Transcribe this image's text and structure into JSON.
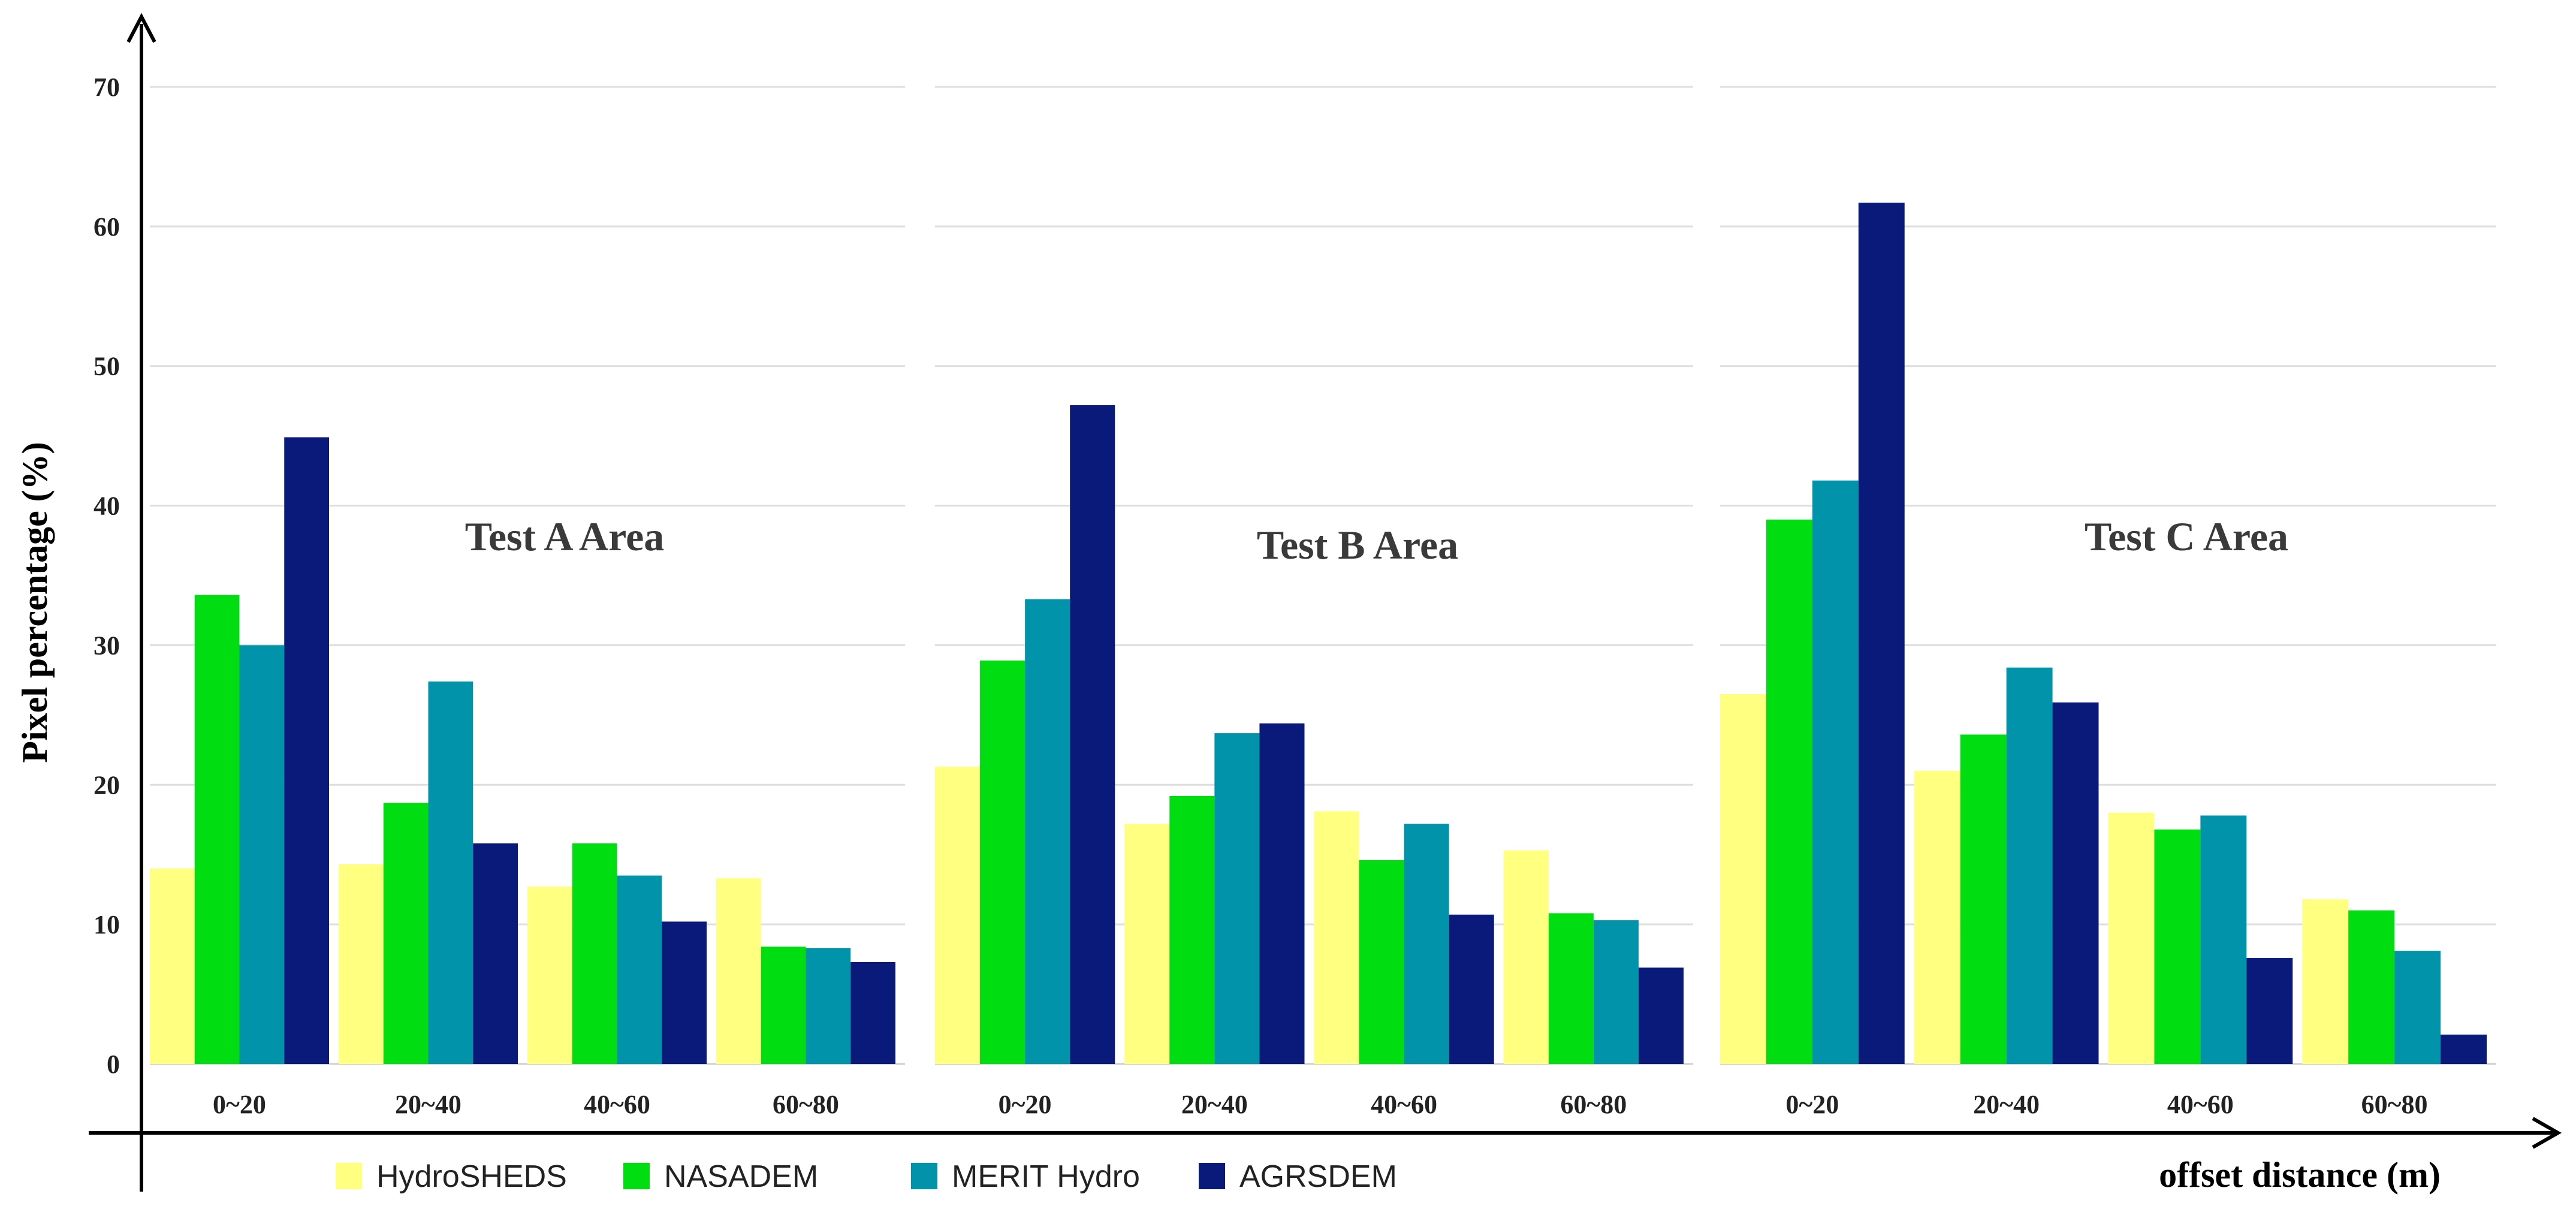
{
  "chart_data": {
    "type": "bar",
    "ylabel": "Pixel percentage (%)",
    "xlabel": "offset distance (m)",
    "ylim": [
      0,
      70
    ],
    "yticks": [
      0,
      10,
      20,
      30,
      40,
      50,
      60,
      70
    ],
    "grid": true,
    "legend_position": "bottom-left",
    "categories": [
      "0~20",
      "20~40",
      "40~60",
      "60~80"
    ],
    "series_meta": [
      {
        "name": "HydroSHEDS",
        "color": "#ffff80"
      },
      {
        "name": "NASADEM",
        "color": "#00dd11"
      },
      {
        "name": "MERIT Hydro",
        "color": "#0093aa"
      },
      {
        "name": "AGRSDEM",
        "color": "#0a1a7a"
      }
    ],
    "panels": [
      {
        "title": "Test A Area",
        "series": [
          {
            "name": "HydroSHEDS",
            "values": [
              14.0,
              14.3,
              12.7,
              13.3
            ]
          },
          {
            "name": "NASADEM",
            "values": [
              33.6,
              18.7,
              15.8,
              8.4
            ]
          },
          {
            "name": "MERIT Hydro",
            "values": [
              30.0,
              27.4,
              13.5,
              8.3
            ]
          },
          {
            "name": "AGRSDEM",
            "values": [
              44.9,
              15.8,
              10.2,
              7.3
            ]
          }
        ]
      },
      {
        "title": "Test B Area",
        "series": [
          {
            "name": "HydroSHEDS",
            "values": [
              21.3,
              17.2,
              18.1,
              15.3
            ]
          },
          {
            "name": "NASADEM",
            "values": [
              28.9,
              19.2,
              14.6,
              10.8
            ]
          },
          {
            "name": "MERIT Hydro",
            "values": [
              33.3,
              23.7,
              17.2,
              10.3
            ]
          },
          {
            "name": "AGRSDEM",
            "values": [
              47.2,
              24.4,
              10.7,
              6.9
            ]
          }
        ]
      },
      {
        "title": "Test C Area",
        "series": [
          {
            "name": "HydroSHEDS",
            "values": [
              26.5,
              21.0,
              18.0,
              11.8
            ]
          },
          {
            "name": "NASADEM",
            "values": [
              39.0,
              23.6,
              16.8,
              11.0
            ]
          },
          {
            "name": "MERIT Hydro",
            "values": [
              41.8,
              28.4,
              17.8,
              8.1
            ]
          },
          {
            "name": "AGRSDEM",
            "values": [
              61.7,
              25.9,
              7.6,
              2.1
            ]
          }
        ]
      }
    ]
  }
}
